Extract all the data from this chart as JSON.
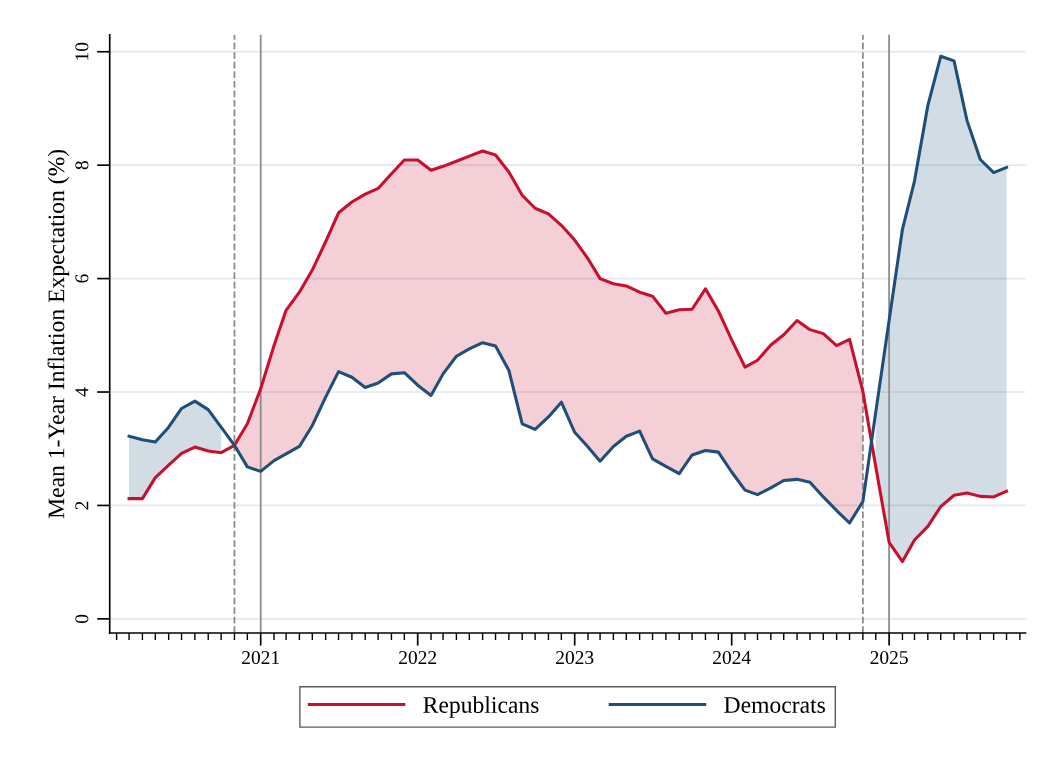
{
  "chart_data": {
    "type": "line",
    "ylabel": "Mean 1-Year Inflation Expectation (%)",
    "x": [
      "2020-03",
      "2020-04",
      "2020-05",
      "2020-06",
      "2020-07",
      "2020-08",
      "2020-09",
      "2020-10",
      "2020-11",
      "2020-12",
      "2021-01",
      "2021-02",
      "2021-03",
      "2021-04",
      "2021-05",
      "2021-06",
      "2021-07",
      "2021-08",
      "2021-09",
      "2021-10",
      "2021-11",
      "2021-12",
      "2022-01",
      "2022-02",
      "2022-03",
      "2022-04",
      "2022-05",
      "2022-06",
      "2022-07",
      "2022-08",
      "2022-09",
      "2022-10",
      "2022-11",
      "2022-12",
      "2023-01",
      "2023-02",
      "2023-03",
      "2023-04",
      "2023-05",
      "2023-06",
      "2023-07",
      "2023-08",
      "2023-09",
      "2023-10",
      "2023-11",
      "2023-12",
      "2024-01",
      "2024-02",
      "2024-03",
      "2024-04",
      "2024-05",
      "2024-06",
      "2024-07",
      "2024-08",
      "2024-09",
      "2024-10",
      "2024-11",
      "2024-12",
      "2025-01",
      "2025-02",
      "2025-03",
      "2025-04",
      "2025-05",
      "2025-06",
      "2025-07",
      "2025-08",
      "2025-09",
      "2025-10"
    ],
    "series": [
      {
        "name": "Republicans",
        "color": "#c8102e",
        "values": [
          2.12,
          2.12,
          2.49,
          2.71,
          2.92,
          3.03,
          2.96,
          2.93,
          3.06,
          3.44,
          4.06,
          4.82,
          5.44,
          5.76,
          6.15,
          6.65,
          7.16,
          7.35,
          7.49,
          7.59,
          7.85,
          8.09,
          8.09,
          7.91,
          7.98,
          8.07,
          8.16,
          8.25,
          8.18,
          7.88,
          7.47,
          7.24,
          7.14,
          6.94,
          6.68,
          6.35,
          6.0,
          5.91,
          5.87,
          5.76,
          5.69,
          5.39,
          5.45,
          5.46,
          5.82,
          5.43,
          4.92,
          4.44,
          4.56,
          4.83,
          5.01,
          5.26,
          5.1,
          5.03,
          4.82,
          4.93,
          4.01,
          2.68,
          1.35,
          1.01,
          1.39,
          1.63,
          1.98,
          2.18,
          2.22,
          2.16,
          2.15,
          2.25
        ],
        "lower": [
          null,
          null,
          null,
          null,
          null,
          null,
          null,
          null,
          3.06,
          2.68,
          2.6,
          2.79,
          2.91,
          3.04,
          3.41,
          3.91,
          4.36,
          4.26,
          4.08,
          4.16,
          4.32,
          4.34,
          4.12,
          3.94,
          4.32,
          4.63,
          4.76,
          4.87,
          4.81,
          4.38,
          3.44,
          3.34,
          3.56,
          3.82,
          3.29,
          3.03,
          2.78,
          3.04,
          3.22,
          3.31,
          2.82,
          2.69,
          2.56,
          2.89,
          2.97,
          2.94,
          2.59,
          2.27,
          2.19,
          2.31,
          2.44,
          2.46,
          2.41,
          2.15,
          1.91,
          1.69,
          2.07,
          null,
          null,
          null,
          null,
          null,
          null,
          null,
          null,
          null,
          null,
          null
        ],
        "upper": [
          null,
          null,
          null,
          null,
          null,
          null,
          null,
          null,
          3.06,
          3.44,
          4.06,
          4.82,
          5.44,
          5.76,
          6.15,
          6.65,
          7.16,
          7.35,
          7.49,
          7.59,
          7.85,
          8.09,
          8.09,
          7.91,
          7.98,
          8.07,
          8.16,
          8.25,
          8.18,
          7.88,
          7.47,
          7.24,
          7.14,
          6.94,
          6.68,
          6.35,
          6.0,
          5.91,
          5.87,
          5.76,
          5.69,
          5.39,
          5.45,
          5.46,
          5.82,
          5.43,
          4.92,
          4.44,
          4.56,
          4.83,
          5.01,
          5.26,
          5.1,
          5.03,
          4.82,
          4.93,
          4.01,
          null,
          null,
          null,
          null,
          null,
          null,
          null,
          null,
          null,
          null,
          null
        ]
      },
      {
        "name": "Democrats",
        "color": "#1f4e79",
        "values": [
          3.22,
          3.16,
          3.12,
          3.38,
          3.71,
          3.84,
          3.69,
          3.38,
          3.06,
          2.68,
          2.6,
          2.79,
          2.91,
          3.04,
          3.41,
          3.91,
          4.36,
          4.26,
          4.08,
          4.16,
          4.32,
          4.34,
          4.12,
          3.94,
          4.32,
          4.63,
          4.76,
          4.87,
          4.81,
          4.38,
          3.44,
          3.34,
          3.56,
          3.82,
          3.29,
          3.03,
          2.78,
          3.04,
          3.22,
          3.31,
          2.82,
          2.69,
          2.56,
          2.89,
          2.97,
          2.94,
          2.59,
          2.27,
          2.19,
          2.31,
          2.44,
          2.46,
          2.41,
          2.15,
          1.91,
          1.69,
          2.07,
          3.65,
          5.26,
          6.87,
          7.72,
          9.05,
          9.92,
          9.84,
          8.79,
          8.1,
          7.87,
          7.96
        ],
        "lower": [
          2.12,
          2.12,
          2.49,
          2.71,
          2.92,
          3.03,
          2.96,
          2.93,
          null,
          null,
          null,
          null,
          null,
          null,
          null,
          null,
          null,
          null,
          null,
          null,
          null,
          null,
          null,
          null,
          null,
          null,
          null,
          null,
          null,
          null,
          null,
          null,
          null,
          null,
          null,
          null,
          null,
          null,
          null,
          null,
          null,
          null,
          null,
          null,
          null,
          null,
          null,
          null,
          null,
          null,
          null,
          null,
          null,
          null,
          null,
          null,
          null,
          2.68,
          1.35,
          1.01,
          1.39,
          1.63,
          1.98,
          2.18,
          2.22,
          2.16,
          2.15,
          2.25
        ],
        "upper": [
          3.22,
          3.16,
          3.12,
          3.38,
          3.71,
          3.84,
          3.69,
          3.38,
          null,
          null,
          null,
          null,
          null,
          null,
          null,
          null,
          null,
          null,
          null,
          null,
          null,
          null,
          null,
          null,
          null,
          null,
          null,
          null,
          null,
          null,
          null,
          null,
          null,
          null,
          null,
          null,
          null,
          null,
          null,
          null,
          null,
          null,
          null,
          null,
          null,
          null,
          null,
          null,
          null,
          null,
          null,
          null,
          null,
          null,
          null,
          null,
          null,
          3.65,
          5.26,
          6.87,
          7.72,
          9.05,
          9.92,
          9.84,
          8.79,
          8.1,
          7.87,
          7.96
        ]
      }
    ],
    "xlim": [
      "2020-01-16",
      "2025-11-14"
    ],
    "xticks": [
      {
        "value": "2021-01-01",
        "label": "2021"
      },
      {
        "value": "2022-01-01",
        "label": "2022"
      },
      {
        "value": "2023-01-01",
        "label": "2023"
      },
      {
        "value": "2024-01-01",
        "label": "2024"
      },
      {
        "value": "2025-01-01",
        "label": "2025"
      }
    ],
    "ylim": [
      -0.25,
      10.3
    ],
    "yticks": [
      0,
      2,
      4,
      6,
      8,
      10
    ],
    "ref_lines": [
      {
        "axis": "x",
        "value": "2020-11-01",
        "color": "#8c8c8c",
        "line_style": "dashed"
      },
      {
        "axis": "x",
        "value": "2021-01-01",
        "color": "#8c8c8c",
        "line_style": "solid"
      },
      {
        "axis": "x",
        "value": "2024-11-01",
        "color": "#8c8c8c",
        "line_style": "dashed"
      },
      {
        "axis": "x",
        "value": "2025-01-01",
        "color": "#8c8c8c",
        "line_style": "solid"
      }
    ],
    "grid": "y",
    "legend": "bottom",
    "marker": "none",
    "line_style": "solid"
  }
}
